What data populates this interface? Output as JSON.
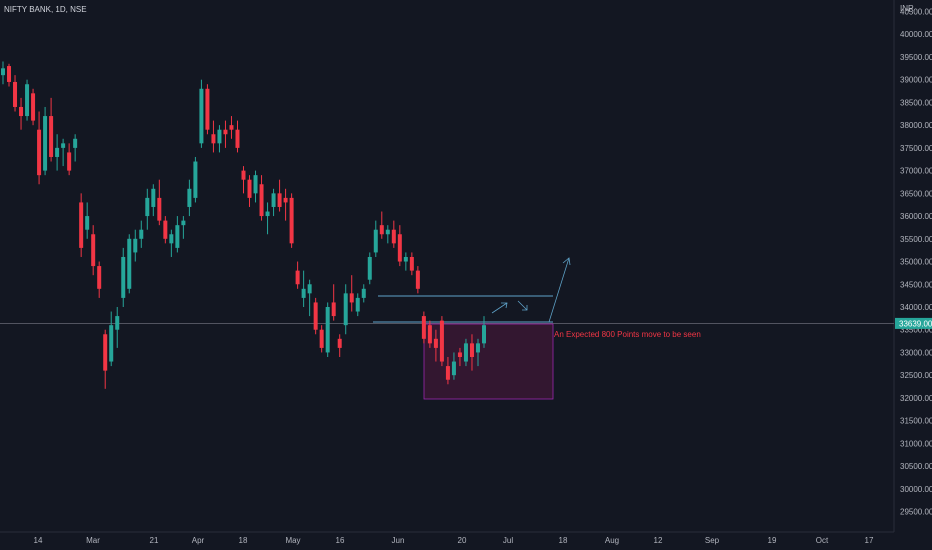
{
  "header": {
    "symbol": "NIFTY BANK, 1D, NSE",
    "currency": "INR"
  },
  "colors": {
    "background": "#131722",
    "up": "#26a69a",
    "down": "#f23645",
    "grid": "#1e222d",
    "axis_text": "#b2b5be",
    "price_line": "#787b86",
    "last_price_badge": "#26a69a",
    "zone_fill": "#3a1733",
    "zone_border": "#9c27b0",
    "drawing_line": "#5fa3c9",
    "annotation_text": "#f23645"
  },
  "chart_data": {
    "type": "candlestick",
    "title": "NIFTY BANK, 1D, NSE",
    "ylabel": "INR",
    "ylim": [
      29400,
      41500
    ],
    "y_ticks": [
      "29500.00",
      "30000.00",
      "30500.00",
      "31000.00",
      "31500.00",
      "32000.00",
      "32500.00",
      "33000.00",
      "33500.00",
      "34000.00",
      "34500.00",
      "35000.00",
      "35500.00",
      "36000.00",
      "36500.00",
      "37000.00",
      "37500.00",
      "38000.00",
      "38500.00",
      "39000.00",
      "39500.00",
      "40000.00",
      "40500.00"
    ],
    "last_price_label": "33639.00",
    "last_price": 33639,
    "x_ticks": [
      "14",
      "Mar",
      "21",
      "Apr",
      "18",
      "May",
      "16",
      "Jun",
      "20",
      "Jul",
      "18",
      "Aug",
      "12",
      "Sep",
      "19",
      "Oct",
      "17"
    ],
    "grid": false,
    "candles": [
      {
        "o": 39100,
        "h": 39400,
        "l": 38900,
        "c": 39250
      },
      {
        "o": 39300,
        "h": 39350,
        "l": 38850,
        "c": 38950
      },
      {
        "o": 38950,
        "h": 39100,
        "l": 38300,
        "c": 38400
      },
      {
        "o": 38400,
        "h": 38600,
        "l": 37900,
        "c": 38200
      },
      {
        "o": 38200,
        "h": 39000,
        "l": 38100,
        "c": 38900
      },
      {
        "o": 38700,
        "h": 38800,
        "l": 38000,
        "c": 38100
      },
      {
        "o": 37900,
        "h": 38300,
        "l": 36700,
        "c": 36900
      },
      {
        "o": 37000,
        "h": 38400,
        "l": 36900,
        "c": 38200
      },
      {
        "o": 38200,
        "h": 38600,
        "l": 37200,
        "c": 37300
      },
      {
        "o": 37300,
        "h": 37800,
        "l": 37000,
        "c": 37500
      },
      {
        "o": 37500,
        "h": 37700,
        "l": 37100,
        "c": 37600
      },
      {
        "o": 37400,
        "h": 37600,
        "l": 36900,
        "c": 37000
      },
      {
        "o": 37500,
        "h": 37800,
        "l": 37200,
        "c": 37700
      },
      {
        "o": 36300,
        "h": 36500,
        "l": 35100,
        "c": 35300
      },
      {
        "o": 35700,
        "h": 36300,
        "l": 35500,
        "c": 36000
      },
      {
        "o": 35600,
        "h": 35800,
        "l": 34700,
        "c": 34900
      },
      {
        "o": 34900,
        "h": 35000,
        "l": 34200,
        "c": 34400
      },
      {
        "o": 33400,
        "h": 33500,
        "l": 32200,
        "c": 32600
      },
      {
        "o": 32800,
        "h": 33900,
        "l": 32700,
        "c": 33600
      },
      {
        "o": 33500,
        "h": 34000,
        "l": 33100,
        "c": 33800
      },
      {
        "o": 34200,
        "h": 35300,
        "l": 34000,
        "c": 35100
      },
      {
        "o": 34400,
        "h": 35600,
        "l": 34300,
        "c": 35500
      },
      {
        "o": 35200,
        "h": 35700,
        "l": 35000,
        "c": 35500
      },
      {
        "o": 35500,
        "h": 35900,
        "l": 35300,
        "c": 35700
      },
      {
        "o": 36000,
        "h": 36600,
        "l": 35700,
        "c": 36400
      },
      {
        "o": 36200,
        "h": 36700,
        "l": 36000,
        "c": 36600
      },
      {
        "o": 36400,
        "h": 36800,
        "l": 35800,
        "c": 35900
      },
      {
        "o": 35900,
        "h": 36000,
        "l": 35400,
        "c": 35500
      },
      {
        "o": 35400,
        "h": 35700,
        "l": 35100,
        "c": 35600
      },
      {
        "o": 35300,
        "h": 36000,
        "l": 35200,
        "c": 35800
      },
      {
        "o": 35800,
        "h": 36000,
        "l": 35500,
        "c": 35900
      },
      {
        "o": 36200,
        "h": 36800,
        "l": 36000,
        "c": 36600
      },
      {
        "o": 36400,
        "h": 37300,
        "l": 36300,
        "c": 37200
      },
      {
        "o": 37600,
        "h": 39000,
        "l": 37500,
        "c": 38800
      },
      {
        "o": 38800,
        "h": 38900,
        "l": 37800,
        "c": 37900
      },
      {
        "o": 37800,
        "h": 38100,
        "l": 37400,
        "c": 37600
      },
      {
        "o": 37600,
        "h": 38000,
        "l": 37400,
        "c": 37900
      },
      {
        "o": 37900,
        "h": 38100,
        "l": 37500,
        "c": 37800
      },
      {
        "o": 38000,
        "h": 38200,
        "l": 37700,
        "c": 37900
      },
      {
        "o": 37900,
        "h": 38100,
        "l": 37400,
        "c": 37500
      },
      {
        "o": 37000,
        "h": 37100,
        "l": 36500,
        "c": 36800
      },
      {
        "o": 36800,
        "h": 36900,
        "l": 36200,
        "c": 36400
      },
      {
        "o": 36500,
        "h": 37000,
        "l": 36300,
        "c": 36900
      },
      {
        "o": 36700,
        "h": 36900,
        "l": 35900,
        "c": 36000
      },
      {
        "o": 36000,
        "h": 36300,
        "l": 35600,
        "c": 36100
      },
      {
        "o": 36200,
        "h": 36600,
        "l": 36000,
        "c": 36500
      },
      {
        "o": 36500,
        "h": 36800,
        "l": 36100,
        "c": 36200
      },
      {
        "o": 36400,
        "h": 36600,
        "l": 35900,
        "c": 36300
      },
      {
        "o": 36400,
        "h": 36500,
        "l": 35300,
        "c": 35400
      },
      {
        "o": 34800,
        "h": 35000,
        "l": 34400,
        "c": 34500
      },
      {
        "o": 34200,
        "h": 34800,
        "l": 34000,
        "c": 34400
      },
      {
        "o": 34300,
        "h": 34600,
        "l": 33800,
        "c": 34500
      },
      {
        "o": 34100,
        "h": 34200,
        "l": 33400,
        "c": 33500
      },
      {
        "o": 33500,
        "h": 33600,
        "l": 33000,
        "c": 33100
      },
      {
        "o": 33000,
        "h": 34100,
        "l": 32900,
        "c": 34000
      },
      {
        "o": 34100,
        "h": 34500,
        "l": 33700,
        "c": 33800
      },
      {
        "o": 33300,
        "h": 33400,
        "l": 32900,
        "c": 33100
      },
      {
        "o": 33600,
        "h": 34500,
        "l": 33400,
        "c": 34300
      },
      {
        "o": 34300,
        "h": 34700,
        "l": 33900,
        "c": 34100
      },
      {
        "o": 33900,
        "h": 34300,
        "l": 33800,
        "c": 34200
      },
      {
        "o": 34200,
        "h": 34500,
        "l": 34100,
        "c": 34400
      },
      {
        "o": 34600,
        "h": 35200,
        "l": 34500,
        "c": 35100
      },
      {
        "o": 35200,
        "h": 35900,
        "l": 35100,
        "c": 35700
      },
      {
        "o": 35800,
        "h": 36100,
        "l": 35500,
        "c": 35600
      },
      {
        "o": 35600,
        "h": 35800,
        "l": 35400,
        "c": 35700
      },
      {
        "o": 35700,
        "h": 35900,
        "l": 35300,
        "c": 35400
      },
      {
        "o": 35600,
        "h": 35800,
        "l": 34900,
        "c": 35000
      },
      {
        "o": 35000,
        "h": 35200,
        "l": 34800,
        "c": 35100
      },
      {
        "o": 35100,
        "h": 35200,
        "l": 34700,
        "c": 34800
      },
      {
        "o": 34800,
        "h": 34900,
        "l": 34300,
        "c": 34400
      },
      {
        "o": 33800,
        "h": 33900,
        "l": 33200,
        "c": 33300
      },
      {
        "o": 33600,
        "h": 33700,
        "l": 33100,
        "c": 33200
      },
      {
        "o": 33300,
        "h": 33500,
        "l": 32800,
        "c": 33100
      },
      {
        "o": 33700,
        "h": 33800,
        "l": 32700,
        "c": 32800
      },
      {
        "o": 32700,
        "h": 32900,
        "l": 32300,
        "c": 32400
      },
      {
        "o": 32500,
        "h": 33000,
        "l": 32400,
        "c": 32800
      },
      {
        "o": 33000,
        "h": 33100,
        "l": 32700,
        "c": 32900
      },
      {
        "o": 32800,
        "h": 33300,
        "l": 32700,
        "c": 33200
      },
      {
        "o": 33200,
        "h": 33400,
        "l": 32600,
        "c": 32900
      },
      {
        "o": 33000,
        "h": 33300,
        "l": 32700,
        "c": 33200
      },
      {
        "o": 33200,
        "h": 33800,
        "l": 33100,
        "c": 33600
      }
    ],
    "annotations": [
      {
        "text": "An Expected 800 Points move to be seen"
      }
    ]
  }
}
